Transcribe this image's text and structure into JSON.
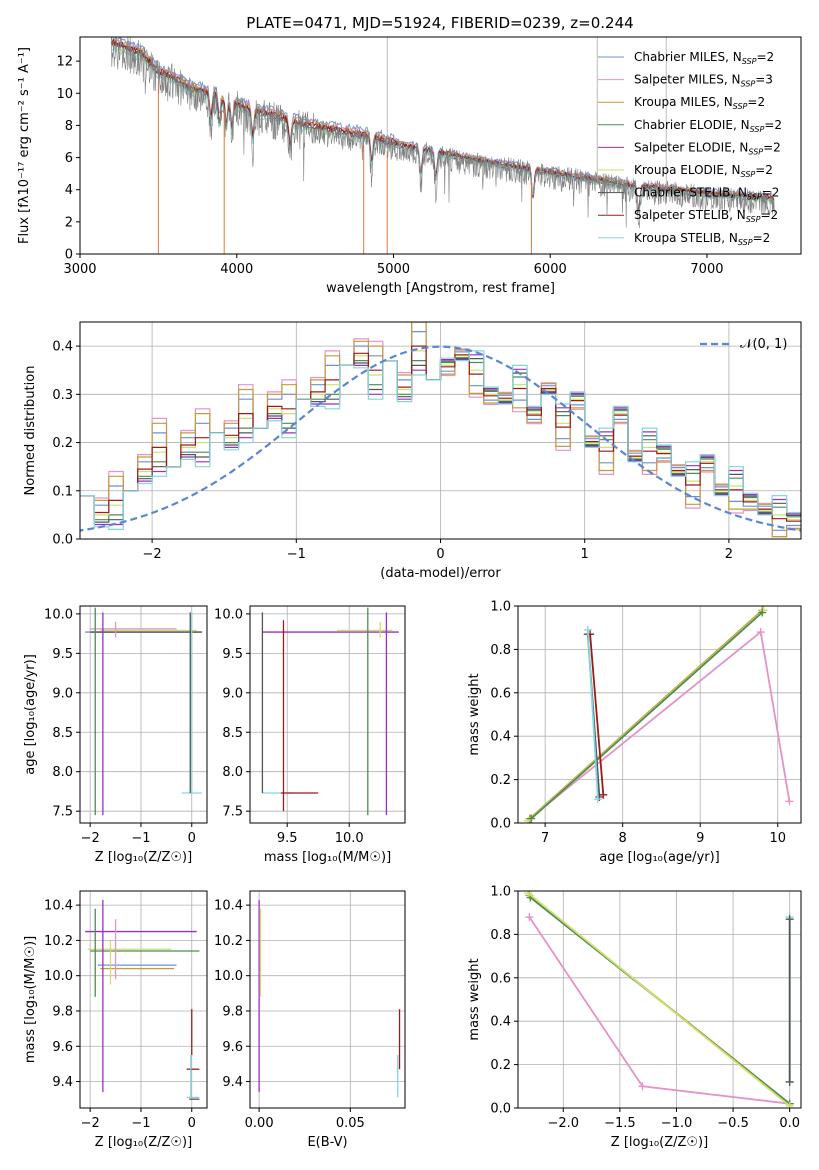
{
  "figure": {
    "title": "PLATE=0471, MJD=51924, FIBERID=0239, z=0.244"
  },
  "colors": {
    "Chabrier MILES": "#6f8fd6",
    "Salpeter MILES": "#e493c8",
    "Kroupa MILES": "#c39a3c",
    "Chabrier ELODIE": "#4e8c52",
    "Salpeter ELODIE": "#9a2fc6",
    "Kroupa ELODIE": "#cde06a",
    "Chabrier STELIB": "#555555",
    "Salpeter STELIB": "#9b1b1b",
    "Kroupa STELIB": "#84d6dd",
    "data": "#808080",
    "orange_model": "#e07a3a",
    "gaussian": "#5b86d0",
    "grid": "#b0b0b0"
  },
  "chart_data": [
    {
      "id": "spectrum",
      "type": "line",
      "xlabel": "wavelength [Angstrom, rest frame]",
      "ylabel": "Flux [fλ10⁻¹⁷ erg cm⁻² s⁻¹ A⁻¹]",
      "xlim": [
        3000,
        7600
      ],
      "ylim": [
        0,
        13.5
      ],
      "xticks": [
        3000,
        4000,
        5000,
        6000,
        7000
      ],
      "yticks": [
        0,
        2,
        4,
        6,
        8,
        10,
        12
      ],
      "grid": false,
      "legend_position": "top-right",
      "legend": [
        {
          "name": "Chabrier MILES",
          "nssp": "2"
        },
        {
          "name": "Salpeter MILES",
          "nssp": "3"
        },
        {
          "name": "Kroupa MILES",
          "nssp": "2"
        },
        {
          "name": "Chabrier ELODIE",
          "nssp": "2"
        },
        {
          "name": "Salpeter ELODIE",
          "nssp": "2"
        },
        {
          "name": "Kroupa ELODIE",
          "nssp": "2"
        },
        {
          "name": "Chabrier STELIB",
          "nssp": "2"
        },
        {
          "name": "Salpeter STELIB",
          "nssp": "2"
        },
        {
          "name": "Kroupa STELIB",
          "nssp": "2"
        }
      ],
      "continuum": {
        "x": [
          3200,
          3300,
          3400,
          3500,
          3600,
          3700,
          3800,
          3900,
          4000,
          4100,
          4200,
          4300,
          4400,
          4600,
          4800,
          5000,
          5200,
          5500,
          6000,
          6500,
          7000,
          7400
        ],
        "y": [
          13.0,
          12.7,
          12.3,
          11.2,
          10.8,
          10.2,
          10.0,
          9.6,
          9.2,
          8.8,
          8.6,
          8.3,
          8.0,
          7.6,
          7.3,
          6.8,
          6.4,
          5.8,
          5.0,
          4.2,
          3.7,
          3.4
        ]
      },
      "model_offsets": [
        0.5,
        0.35,
        0.3,
        0.05,
        0.0,
        -0.1,
        0.1,
        0.2,
        -0.2
      ]
    },
    {
      "id": "residuals",
      "type": "line",
      "xlabel": "(data-model)/error",
      "ylabel": "Normed distribution",
      "xlim": [
        -2.5,
        2.5
      ],
      "ylim": [
        0,
        0.45
      ],
      "xticks": [
        -2,
        -1,
        0,
        1,
        2
      ],
      "yticks": [
        0.0,
        0.1,
        0.2,
        0.3,
        0.4
      ],
      "grid": true,
      "legend_position": "top-right",
      "gaussian_label": "𝒩(0, 1)",
      "bin_edges_start": -2.5,
      "bin_width": 0.1,
      "hist_base": [
        0.09,
        0.05,
        0.07,
        0.1,
        0.14,
        0.18,
        0.15,
        0.19,
        0.2,
        0.22,
        0.21,
        0.25,
        0.23,
        0.27,
        0.26,
        0.29,
        0.3,
        0.32,
        0.36,
        0.38,
        0.34,
        0.37,
        0.31,
        0.39,
        0.33,
        0.36,
        0.38,
        0.35,
        0.3,
        0.29,
        0.32,
        0.26,
        0.31,
        0.24,
        0.29,
        0.2,
        0.19,
        0.26,
        0.17,
        0.19,
        0.18,
        0.14,
        0.12,
        0.16,
        0.1,
        0.11,
        0.08,
        0.06,
        0.05,
        0.04
      ]
    },
    {
      "id": "age-vs-Z",
      "type": "scatter",
      "xlabel": "Z [log₁₀(Z/Z☉)]",
      "ylabel": "age  [log₁₀(age/yr)]",
      "xlim": [
        -2.2,
        0.3
      ],
      "ylim": [
        7.35,
        10.1
      ],
      "xticks": [
        -2,
        -1,
        0
      ],
      "yticks": [
        7.5,
        8.0,
        8.5,
        9.0,
        9.5,
        10.0
      ],
      "grid": true,
      "hlines": [
        {
          "series": "Chabrier MILES",
          "y": 9.77,
          "x": [
            -2.1,
            0.2
          ]
        },
        {
          "series": "Salpeter MILES",
          "y": 9.81,
          "x": [
            -2.0,
            -0.3
          ]
        },
        {
          "series": "Kroupa ELODIE",
          "y": 9.79,
          "x": [
            -1.8,
            0.1
          ]
        },
        {
          "series": "Chabrier STELIB",
          "y": 9.77,
          "x": [
            -2.0,
            0.2
          ]
        },
        {
          "series": "Kroupa STELIB",
          "y": 7.73,
          "x": [
            -0.2,
            0.2
          ]
        }
      ],
      "vlines": [
        {
          "series": "Chabrier ELODIE",
          "x": -1.9,
          "y": [
            7.45,
            10.08
          ]
        },
        {
          "series": "Salpeter ELODIE",
          "x": -1.75,
          "y": [
            7.45,
            10.02
          ]
        },
        {
          "series": "Salpeter MILES",
          "x": -1.5,
          "y": [
            9.7,
            9.9
          ]
        },
        {
          "series": "Kroupa STELIB",
          "x": 0.0,
          "y": [
            7.73,
            10.02
          ]
        },
        {
          "series": "Chabrier STELIB",
          "x": -0.03,
          "y": [
            7.73,
            10.02
          ]
        }
      ]
    },
    {
      "id": "age-vs-mass",
      "type": "scatter",
      "xlabel": "mass [log₁₀(M/M☉)]",
      "ylabel": "",
      "xlim": [
        9.2,
        10.45
      ],
      "ylim": [
        7.35,
        10.1
      ],
      "xticks": [
        9.5,
        10.0
      ],
      "yticks": [
        7.5,
        8.0,
        8.5,
        9.0,
        9.5,
        10.0
      ],
      "grid": true,
      "hlines": [
        {
          "series": "Salpeter ELODIE",
          "y": 9.77,
          "x": [
            9.3,
            10.4
          ]
        },
        {
          "series": "Kroupa ELODIE",
          "y": 9.79,
          "x": [
            9.9,
            10.35
          ]
        },
        {
          "series": "Kroupa STELIB",
          "y": 7.73,
          "x": [
            9.3,
            9.55
          ]
        },
        {
          "series": "Salpeter STELIB",
          "y": 7.73,
          "x": [
            9.45,
            9.75
          ]
        }
      ],
      "vlines": [
        {
          "series": "Chabrier STELIB",
          "x": 9.3,
          "y": [
            7.73,
            10.02
          ]
        },
        {
          "series": "Salpeter STELIB",
          "x": 9.47,
          "y": [
            7.5,
            9.92
          ]
        },
        {
          "series": "Chabrier ELODIE",
          "x": 10.15,
          "y": [
            7.45,
            10.08
          ]
        },
        {
          "series": "Salpeter ELODIE",
          "x": 10.3,
          "y": [
            7.45,
            10.02
          ]
        },
        {
          "series": "Kroupa ELODIE",
          "x": 10.25,
          "y": [
            9.7,
            9.9
          ]
        }
      ]
    },
    {
      "id": "weight-vs-age",
      "type": "line",
      "xlabel": "age  [log₁₀(age/yr)]",
      "ylabel": "mass weight",
      "xlim": [
        6.65,
        10.3
      ],
      "ylim": [
        0,
        1.0
      ],
      "xticks": [
        7,
        8,
        9,
        10
      ],
      "yticks": [
        0.0,
        0.2,
        0.4,
        0.6,
        0.8,
        1.0
      ],
      "grid": true,
      "lines": [
        {
          "series": "Salpeter MILES",
          "x": [
            6.8,
            9.78,
            10.15
          ],
          "y": [
            0.02,
            0.88,
            0.1
          ]
        },
        {
          "series": "Kroupa MILES",
          "x": [
            6.8,
            9.8
          ],
          "y": [
            0.02,
            0.98
          ]
        },
        {
          "series": "Kroupa ELODIE",
          "x": [
            6.78,
            9.82
          ],
          "y": [
            0.01,
            0.98
          ]
        },
        {
          "series": "Chabrier ELODIE",
          "x": [
            6.82,
            9.8
          ],
          "y": [
            0.02,
            0.97
          ]
        },
        {
          "series": "Chabrier STELIB",
          "x": [
            7.55,
            7.7
          ],
          "y": [
            0.87,
            0.12
          ]
        },
        {
          "series": "Salpeter STELIB",
          "x": [
            7.58,
            7.75
          ],
          "y": [
            0.87,
            0.13
          ]
        },
        {
          "series": "Kroupa STELIB",
          "x": [
            7.55,
            7.68
          ],
          "y": [
            0.89,
            0.11
          ]
        }
      ]
    },
    {
      "id": "mass-vs-Z",
      "type": "scatter",
      "xlabel": "Z [log₁₀(Z/Z☉)]",
      "ylabel": "mass [log₁₀(M/M☉)]",
      "xlim": [
        -2.2,
        0.3
      ],
      "ylim": [
        9.25,
        10.48
      ],
      "xticks": [
        -2,
        -1,
        0
      ],
      "yticks": [
        9.4,
        9.6,
        9.8,
        10.0,
        10.2,
        10.4
      ],
      "grid": true,
      "hlines": [
        {
          "series": "Salpeter ELODIE",
          "y": 10.25,
          "x": [
            -2.1,
            0.1
          ]
        },
        {
          "series": "Chabrier ELODIE",
          "y": 10.14,
          "x": [
            -2.0,
            0.15
          ]
        },
        {
          "series": "Kroupa ELODIE",
          "y": 10.15,
          "x": [
            -2.05,
            -0.4
          ]
        },
        {
          "series": "Chabrier MILES",
          "y": 10.06,
          "x": [
            -1.85,
            -0.3
          ]
        },
        {
          "series": "Kroupa MILES",
          "y": 10.04,
          "x": [
            -1.8,
            -0.35
          ]
        },
        {
          "series": "Salpeter STELIB",
          "y": 9.47,
          "x": [
            -0.1,
            0.15
          ]
        },
        {
          "series": "Kroupa STELIB",
          "y": 9.31,
          "x": [
            -0.1,
            0.15
          ]
        },
        {
          "series": "Chabrier STELIB",
          "y": 9.3,
          "x": [
            -0.05,
            0.15
          ]
        }
      ],
      "vlines": [
        {
          "series": "Chabrier ELODIE",
          "x": -1.9,
          "y": [
            9.88,
            10.38
          ]
        },
        {
          "series": "Salpeter ELODIE",
          "x": -1.75,
          "y": [
            9.34,
            10.43
          ]
        },
        {
          "series": "Salpeter MILES",
          "x": -1.5,
          "y": [
            9.98,
            10.32
          ]
        },
        {
          "series": "Kroupa ELODIE",
          "x": -1.6,
          "y": [
            9.95,
            10.2
          ]
        },
        {
          "series": "Salpeter STELIB",
          "x": 0.0,
          "y": [
            9.55,
            9.81
          ]
        },
        {
          "series": "Kroupa STELIB",
          "x": -0.02,
          "y": [
            9.31,
            9.55
          ]
        }
      ]
    },
    {
      "id": "mass-vs-EBV",
      "type": "scatter",
      "xlabel": "E(B-V)",
      "ylabel": "",
      "xlim": [
        -0.005,
        0.08
      ],
      "ylim": [
        9.25,
        10.48
      ],
      "xticks": [
        0.0,
        0.05
      ],
      "yticks": [
        9.4,
        9.6,
        9.8,
        10.0,
        10.2,
        10.4
      ],
      "grid": true,
      "vlines": [
        {
          "series": "Salpeter ELODIE",
          "x": 0.0,
          "y": [
            9.34,
            10.43
          ]
        },
        {
          "series": "Kroupa ELODIE",
          "x": 0.0008,
          "y": [
            9.88,
            10.38
          ]
        },
        {
          "series": "Salpeter STELIB",
          "x": 0.077,
          "y": [
            9.47,
            9.81
          ]
        },
        {
          "series": "Kroupa STELIB",
          "x": 0.076,
          "y": [
            9.31,
            9.55
          ]
        }
      ]
    },
    {
      "id": "weight-vs-Z",
      "type": "line",
      "xlabel": "Z [log₁₀(Z/Z☉)]",
      "ylabel": "mass weight",
      "xlim": [
        -2.4,
        0.1
      ],
      "ylim": [
        0,
        1.0
      ],
      "xticks": [
        -2.0,
        -1.5,
        -1.0,
        -0.5,
        0.0
      ],
      "yticks": [
        0.0,
        0.2,
        0.4,
        0.6,
        0.8,
        1.0
      ],
      "grid": true,
      "lines": [
        {
          "series": "Salpeter MILES",
          "x": [
            -2.3,
            -1.3,
            0.0
          ],
          "y": [
            0.88,
            0.1,
            0.02
          ]
        },
        {
          "series": "Kroupa MILES",
          "x": [
            -2.3,
            0.0
          ],
          "y": [
            0.98,
            0.02
          ]
        },
        {
          "series": "Chabrier ELODIE",
          "x": [
            -2.29,
            0.0
          ],
          "y": [
            0.97,
            0.02
          ]
        },
        {
          "series": "Kroupa ELODIE",
          "x": [
            -2.31,
            0.0
          ],
          "y": [
            0.99,
            0.01
          ]
        },
        {
          "series": "Kroupa STELIB",
          "x": [
            0.0,
            0.0
          ],
          "y": [
            0.88,
            0.12
          ]
        },
        {
          "series": "Chabrier STELIB",
          "x": [
            0.0,
            0.0
          ],
          "y": [
            0.87,
            0.12
          ]
        }
      ]
    }
  ]
}
